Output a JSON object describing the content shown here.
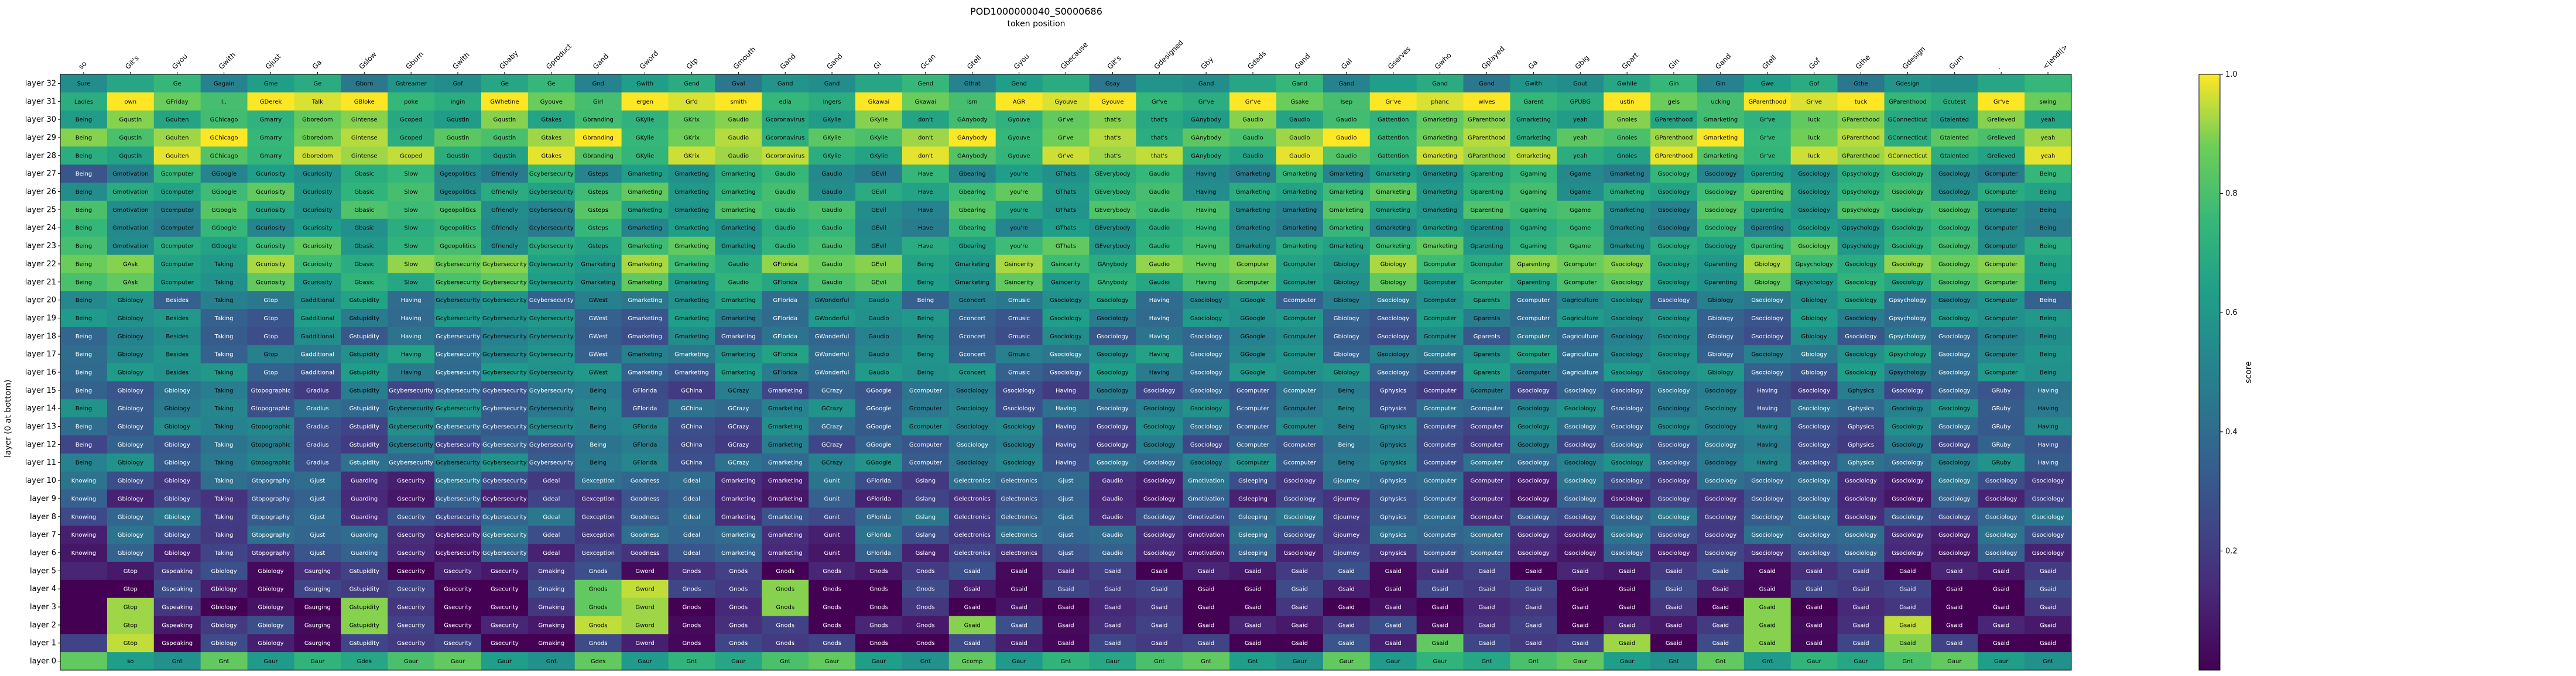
{
  "figure_title": "POD1000000040_S0000686",
  "chart_data": {
    "type": "heatmap",
    "title": "POD1000000040_S0000686",
    "xlabel": "token position",
    "ylabel": "layer (0 at bottom)",
    "colorbar_label": "score",
    "colormap": "viridis",
    "vmin": 0,
    "vmax": 1,
    "colorbar_ticks": [
      "0.2",
      "0.4",
      "0.6",
      "0.8",
      "1.0"
    ],
    "colorbar_tick_values": [
      0.2,
      0.4,
      0.6,
      0.8,
      1.0
    ],
    "x_tokens": [
      "so",
      "Git's",
      "Gyou",
      "Gwith",
      "Gjust",
      "Ga",
      "Gslow",
      "Gburn",
      "Gwith",
      "Gbaby",
      "Gproduct",
      "Gand",
      "Gword",
      "Gtp",
      "Gmouth",
      "Gand",
      "Gand",
      "Gi",
      "Gcan",
      "Gtell",
      "Gyou",
      "Gbecause",
      "Git's",
      "Gdesigned",
      "Gby",
      "Gdads",
      "Gand",
      "Gal",
      "Gserves",
      "Gwho",
      "Gplayed",
      "Ga",
      "Gbig",
      "Gpart",
      "Gin",
      "Gand",
      "Gtell",
      "Gof",
      "Gthe",
      "Gdesign",
      "Gum",
      ".",
      "<|endl|>"
    ],
    "y_labels": [
      "layer 32",
      "layer 31",
      "layer 30",
      "layer 29",
      "layer 28",
      "layer 27",
      "layer 26",
      "layer 25",
      "layer 24",
      "layer 23",
      "layer 22",
      "layer 21",
      "layer 20",
      "layer 19",
      "layer 18",
      "layer 17",
      "layer 16",
      "layer 15",
      "layer 14",
      "layer 13",
      "layer 12",
      "layer 11",
      "layer 10",
      "layer 9",
      "layer 8",
      "layer 7",
      "layer 6",
      "layer 5",
      "layer 4",
      "layer 3",
      "layer 2",
      "layer 1",
      "layer 0"
    ],
    "row_templates": [
      {
        "rows": [
          0
        ],
        "base": 0.55,
        "texts": [
          "Sure",
          "",
          "Ge",
          "Gagain",
          "Gme",
          "Ge",
          "Gborn",
          "Gstreamer",
          "Gof",
          "Ge",
          "Ge",
          "Gnd",
          "Gwith",
          "Gend",
          "Gval",
          "Gand",
          "Gand",
          "",
          "Gend",
          "Gthat",
          "Gend",
          "",
          "Gsay",
          "",
          "Gand",
          "",
          "Gand",
          "Gand",
          "",
          "Gand",
          "Gand",
          "Gwith",
          "Gout",
          "Gwhile",
          "Gin",
          "Gin",
          "Gwe",
          "Gof",
          "Gthe",
          "Gdesign",
          "",
          "",
          ""
        ]
      },
      {
        "rows": [
          1
        ],
        "base": 0.85,
        "texts": [
          "Ladies",
          "own",
          "GFriday",
          "I..",
          "GDerek",
          "Talk",
          "GBloke",
          "poke",
          "ingin",
          "GWhetine",
          "Gyouve",
          "Girl",
          "ergen",
          "Gr'd",
          "smith",
          "edia",
          "ingers",
          "Gkawai",
          "Gkawai",
          "ism",
          "AGR",
          "Gyouve",
          "Gyouve",
          "Gr've",
          "Gr've",
          "Gr've",
          "Gsake",
          "Isep",
          "Gr've",
          "phanc",
          "wives",
          "Garent",
          "GPUBG",
          "ustin",
          "gels",
          "ucking",
          "GParenthood",
          "Gr've",
          "tuck",
          "GParenthood",
          "Gcutest",
          "Gr've",
          "swing"
        ]
      },
      {
        "rows": [
          2,
          3,
          4
        ],
        "base": 0.8,
        "texts": [
          "Being",
          "Gqustin",
          "Gquiten",
          "GChicago",
          "Gmarry",
          "Gboredom",
          "Gintense",
          "Gcoped",
          "Gqustin",
          "Gqustin",
          "Gtakes",
          "Gbranding",
          "GKylie",
          "GKrix",
          "Gaudio",
          "Gcoronavirus",
          "GKylie",
          "GKylie",
          "don't",
          "GAnybody",
          "Gyouve",
          "Gr've",
          "that's",
          "that's",
          "GAnybody",
          "Gaudio",
          "Gaudio",
          "Gaudio",
          "Gattention",
          "Gmarketing",
          "GParenthood",
          "Gmarketing",
          "yeah",
          "Gnoles",
          "GParenthood",
          "Gmarketing",
          "Gr've",
          "luck",
          "GParenthood",
          "GConnecticut",
          "Gtalented",
          "Grelieved",
          "yeah"
        ]
      },
      {
        "rows": [
          5,
          6,
          7,
          8,
          9
        ],
        "base": 0.65,
        "texts": [
          "Being",
          "Gmotivation",
          "Gcomputer",
          "GGoogle",
          "Gcuriosity",
          "Gcuriosity",
          "Gbasic",
          "Slow",
          "Ggeopolitics",
          "Gfriendly",
          "Gcybersecurity",
          "Gsteps",
          "Gmarketing",
          "Gmarketing",
          "Gmarketing",
          "Gaudio",
          "Gaudio",
          "GEvil",
          "Have",
          "Gbearing",
          "you're",
          "GThats",
          "GEverybody",
          "Gaudio",
          "Having",
          "Gmarketing",
          "Gmarketing",
          "Gmarketing",
          "Gmarketing",
          "Gmarketing",
          "Gparenting",
          "Ggaming",
          "Ggame",
          "Gmarketing",
          "Gsociology",
          "Gsociology",
          "Gparenting",
          "Gsociology",
          "Gpsychology",
          "Gsociology",
          "Gsociology",
          "Gcomputer",
          "Being"
        ]
      },
      {
        "rows": [
          10,
          11
        ],
        "base": 0.75,
        "texts": [
          "Being",
          "GAsk",
          "Gcomputer",
          "Taking",
          "Gcuriosity",
          "Gcuriosity",
          "Gbasic",
          "Slow",
          "Gcybersecurity",
          "Gcybersecurity",
          "Gcybersecurity",
          "Gmarketing",
          "Gmarketing",
          "Gmarketing",
          "Gaudio",
          "GFlorida",
          "Gaudio",
          "GEvil",
          "Being",
          "Gmarketing",
          "Gsincerity",
          "Gsincerity",
          "GAnybody",
          "Gaudio",
          "Having",
          "Gcomputer",
          "Gcomputer",
          "Gbiology",
          "Gbiology",
          "Gcomputer",
          "Gcomputer",
          "Gparenting",
          "Gcomputer",
          "Gsociology",
          "Gsociology",
          "Gparenting",
          "Gbiology",
          "Gpsychology",
          "Gsociology",
          "Gsociology",
          "Gsociology",
          "Gcomputer",
          "Being"
        ]
      },
      {
        "rows": [
          12,
          13,
          14,
          15,
          16
        ],
        "base": 0.45,
        "texts": [
          "Being",
          "Gbiology",
          "Besides",
          "Taking",
          "Gtop",
          "Gadditional",
          "Gstupidity",
          "Having",
          "Gcybersecurity",
          "Gcybersecurity",
          "Gcybersecurity",
          "GWest",
          "Gmarketing",
          "Gmarketing",
          "Gmarketing",
          "GFlorida",
          "GWonderful",
          "Gaudio",
          "Being",
          "Gconcert",
          "Gmusic",
          "Gsociology",
          "Gsociology",
          "Having",
          "Gsociology",
          "GGoogle",
          "Gcomputer",
          "Gbiology",
          "Gsociology",
          "Gcomputer",
          "Gparents",
          "Gcomputer",
          "Gagriculture",
          "Gsociology",
          "Gsociology",
          "Gbiology",
          "Gsociology",
          "Gbiology",
          "Gsociology",
          "Gpsychology",
          "Gsociology",
          "Gcomputer",
          "Being"
        ]
      },
      {
        "rows": [
          17,
          18,
          19,
          20,
          21
        ],
        "base": 0.38,
        "texts": [
          "Being",
          "Gbiology",
          "Gbiology",
          "Taking",
          "Gtopographic",
          "Gradius",
          "Gstupidity",
          "Gcybersecurity",
          "Gcybersecurity",
          "Gcybersecurity",
          "Gcybersecurity",
          "Being",
          "GFlorida",
          "GChina",
          "GCrazy",
          "Gmarketing",
          "GCrazy",
          "GGoogle",
          "Gcomputer",
          "Gsociology",
          "Gsociology",
          "Having",
          "Gsociology",
          "Gsociology",
          "Gsociology",
          "Gcomputer",
          "Gcomputer",
          "Being",
          "Gphysics",
          "Gcomputer",
          "Gcomputer",
          "Gsociology",
          "Gsociology",
          "Gsociology",
          "Gsociology",
          "Gsociology",
          "Having",
          "Gsociology",
          "Gphysics",
          "Gsociology",
          "Gsociology",
          "GRuby",
          "Having"
        ]
      },
      {
        "rows": [
          22,
          23,
          24,
          25,
          26
        ],
        "base": 0.25,
        "texts": [
          "Knowing",
          "Gbiology",
          "Gbiology",
          "Taking",
          "Gtopography",
          "Gjust",
          "Guarding",
          "Gsecurity",
          "Gcybersecurity",
          "Gcybersecurity",
          "Gdeal",
          "Gexception",
          "Goodness",
          "Gdeal",
          "Gmarketing",
          "Gmarketing",
          "Gunit",
          "GFlorida",
          "Gslang",
          "Gelectronics",
          "Gelectronics",
          "Gjust",
          "Gaudio",
          "Gsociology",
          "Gmotivation",
          "Gsleeping",
          "Gsociology",
          "Gjourney",
          "Gphysics",
          "Gcomputer",
          "Gcomputer",
          "Gsociology",
          "Gsociology",
          "Gsociology",
          "Gsociology",
          "Gsociology",
          "Gsociology",
          "Gsociology",
          "Gsociology",
          "Gsociology",
          "Gsociology",
          "Gsociology",
          "Gsociology"
        ]
      },
      {
        "rows": [
          27,
          28,
          29,
          30,
          31
        ],
        "base": 0.08,
        "texts": [
          "",
          "Gtop",
          "Gspeaking",
          "Gbiology",
          "Gbiology",
          "Gsurging",
          "Gstupidity",
          "Gsecurity",
          "Gsecurity",
          "Gsecurity",
          "Gmaking",
          "Gnods",
          "Gword",
          "Gnods",
          "Gnods",
          "Gnods",
          "Gnods",
          "Gnods",
          "Gnods",
          "Gsaid",
          "Gsaid",
          "Gsaid",
          "Gsaid",
          "Gsaid",
          "Gsaid",
          "Gsaid",
          "Gsaid",
          "Gsaid",
          "Gsaid",
          "Gsaid",
          "Gsaid",
          "Gsaid",
          "Gsaid",
          "Gsaid",
          "Gsaid",
          "Gsaid",
          "Gsaid",
          "Gsaid",
          "Gsaid",
          "Gsaid",
          "Gsaid",
          "Gsaid",
          "Gsaid"
        ]
      },
      {
        "rows": [
          32
        ],
        "base": 0.75,
        "texts": [
          "",
          "so",
          "Gnt",
          "Gnt",
          "Gaur",
          "Gaur",
          "Gdes",
          "Gaur",
          "Gaur",
          "Gaur",
          "Gnt",
          "Gdes",
          "Gaur",
          "Gnt",
          "Gaur",
          "Gnt",
          "Gaur",
          "Gaur",
          "Gnt",
          "Gcomp",
          "Gaur",
          "Gnt",
          "Gaur",
          "Gnt",
          "Gnt",
          "Gnt",
          "Gaur",
          "Gaur",
          "Gaur",
          "Gaur",
          "Gnt",
          "Gnt",
          "Gaur",
          "Gaur",
          "Gnt",
          "Gnt",
          "Gnt",
          "Gaur",
          "Gaur",
          "Gnt",
          "Gaur",
          "Gaur",
          "Gnt"
        ]
      }
    ],
    "value_pattern": [
      0,
      0.15,
      -0.08,
      0.12,
      -0.1,
      0.05,
      0.2,
      -0.15,
      0.1,
      -0.05,
      0.18,
      -0.12,
      0.08,
      0.02,
      -0.18,
      0.14,
      -0.06,
      0.1,
      -0.1,
      0.16,
      -0.14,
      0.04,
      0.12,
      -0.02
    ],
    "highlights": [
      {
        "row": 3,
        "col": 0,
        "value": 0.9
      },
      {
        "row": 5,
        "col": 0,
        "value": 0.3
      },
      {
        "row": 28,
        "col": 12,
        "value": 0.95
      },
      {
        "row": 29,
        "col": 12,
        "value": 0.92
      },
      {
        "row": 30,
        "col": 12,
        "value": 0.92
      },
      {
        "row": 28,
        "col": 15,
        "value": 0.9
      },
      {
        "row": 29,
        "col": 15,
        "value": 0.9
      },
      {
        "row": 28,
        "col": 11,
        "value": 0.85
      },
      {
        "row": 29,
        "col": 11,
        "value": 0.85
      },
      {
        "row": 30,
        "col": 11,
        "value": 0.95
      },
      {
        "row": 29,
        "col": 6,
        "value": 0.9
      },
      {
        "row": 30,
        "col": 6,
        "value": 0.9
      },
      {
        "row": 29,
        "col": 1,
        "value": 0.92
      },
      {
        "row": 30,
        "col": 1,
        "value": 0.92
      },
      {
        "row": 31,
        "col": 1,
        "value": 0.95
      },
      {
        "row": 30,
        "col": 39,
        "value": 0.95
      },
      {
        "row": 31,
        "col": 39,
        "value": 0.9
      },
      {
        "row": 29,
        "col": 36,
        "value": 0.9
      },
      {
        "row": 30,
        "col": 36,
        "value": 0.9
      },
      {
        "row": 31,
        "col": 36,
        "value": 0.9
      },
      {
        "row": 31,
        "col": 33,
        "value": 0.92
      },
      {
        "row": 31,
        "col": 29,
        "value": 0.85
      },
      {
        "row": 31,
        "col": 27,
        "value": 0.3
      },
      {
        "row": 30,
        "col": 19,
        "value": 0.9
      }
    ]
  }
}
